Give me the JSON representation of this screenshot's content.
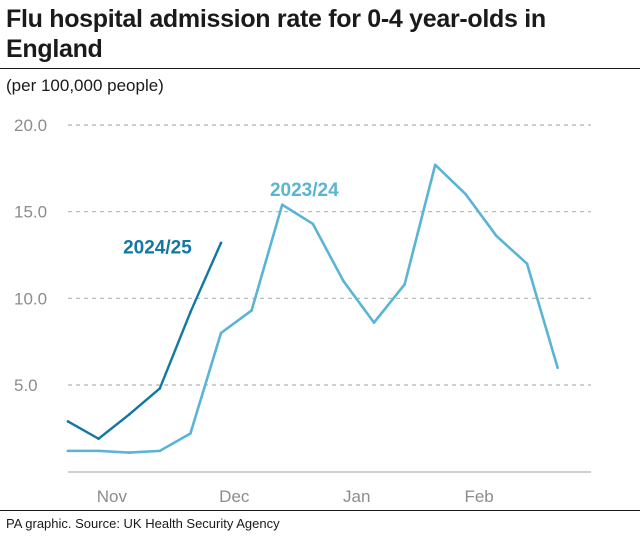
{
  "title": "Flu hospital admission rate for 0-4 year-olds in England",
  "subtitle": "(per 100,000 people)",
  "source": "PA graphic. Source: UK Health Security Agency",
  "colors": {
    "series_2023_24": "#5ab4d6",
    "series_2024_25": "#1377a3",
    "grid": "#b3b3b3",
    "axis_text": "#8c8c8c"
  },
  "chart_data": {
    "type": "line",
    "title": "Flu hospital admission rate for 0-4 year-olds in England",
    "ylabel": "(per 100,000 people)",
    "xlabel": "",
    "ylim": [
      0,
      20
    ],
    "xlim": [
      0,
      15
    ],
    "grid": true,
    "y_ticks": [
      {
        "value": 5,
        "label": "5.0"
      },
      {
        "value": 10,
        "label": "10.0"
      },
      {
        "value": 15,
        "label": "15.0"
      },
      {
        "value": 20,
        "label": "20.0"
      }
    ],
    "x_ticks": [
      {
        "value": 1.5,
        "label": "Nov"
      },
      {
        "value": 5.5,
        "label": "Dec"
      },
      {
        "value": 9.5,
        "label": "Jan"
      },
      {
        "value": 13.5,
        "label": "Feb"
      }
    ],
    "series": [
      {
        "name": "2023/24",
        "color_key": "series_2023_24",
        "x": [
          0,
          1,
          2,
          3,
          4,
          5,
          6,
          7,
          8,
          9,
          10,
          11,
          12,
          13,
          14,
          15,
          16
        ],
        "values": [
          1.2,
          1.2,
          1.1,
          1.2,
          2.2,
          8.0,
          9.3,
          15.4,
          14.3,
          11.0,
          8.6,
          10.8,
          17.7,
          16.0,
          13.6,
          12.0,
          6.0
        ],
        "label_at": {
          "x": 6.6,
          "y": 15.9
        }
      },
      {
        "name": "2024/25",
        "color_key": "series_2024_25",
        "x": [
          0,
          1,
          2,
          3,
          4,
          5
        ],
        "values": [
          2.9,
          1.9,
          3.3,
          4.8,
          9.2,
          13.2
        ],
        "label_at": {
          "x": 1.8,
          "y": 12.6
        }
      }
    ],
    "annotations": [
      {
        "text": "2023/24",
        "series": "2023/24"
      },
      {
        "text": "2024/25",
        "series": "2024/25"
      }
    ]
  }
}
